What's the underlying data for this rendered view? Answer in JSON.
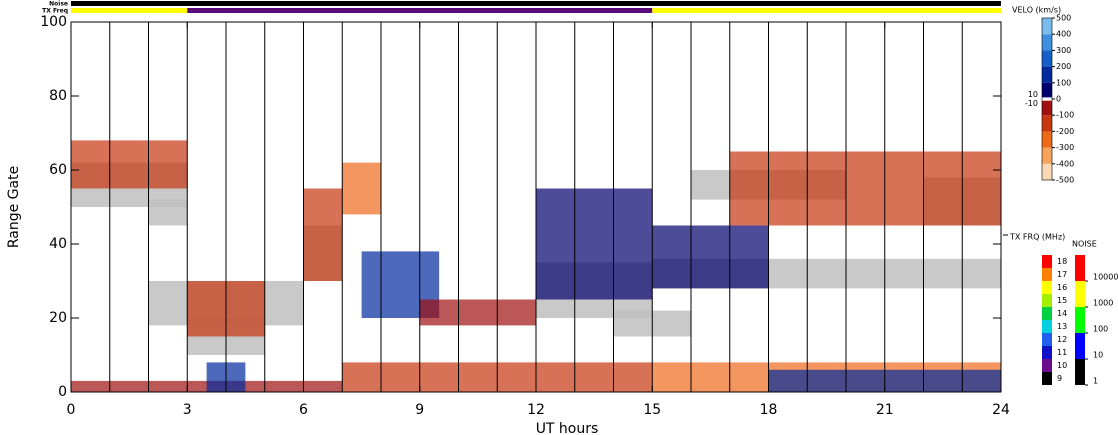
{
  "chart_data": {
    "type": "range_time",
    "xlabel": "UT hours",
    "ylabel": "Range Gate",
    "xlim": [
      0,
      24
    ],
    "xticks": [
      0,
      3,
      6,
      9,
      12,
      15,
      18,
      21,
      24
    ],
    "ylim": [
      0,
      100
    ],
    "yticks": [
      0,
      20,
      40,
      60,
      80,
      100
    ],
    "scan_lines": [
      1,
      2,
      3,
      4,
      5,
      6,
      7,
      8,
      9,
      10,
      11,
      12,
      13,
      14,
      15,
      16,
      17,
      18,
      19,
      20,
      21,
      22,
      23
    ],
    "noise_label": "Noise",
    "noise_color": "#000000",
    "txfreq_label": "TX Freq",
    "txfreq_segments": [
      {
        "start": 0,
        "end": 3,
        "color": "#ffff00"
      },
      {
        "start": 3,
        "end": 15,
        "color": "#5a0a7a"
      },
      {
        "start": 15,
        "end": 24,
        "color": "#ffff00"
      }
    ],
    "ground_color": "#c0c0c0",
    "ground_scatter": [
      [
        0,
        3,
        50,
        62
      ],
      [
        2,
        3,
        45,
        52
      ],
      [
        2,
        6,
        18,
        30
      ],
      [
        3,
        5,
        10,
        20
      ],
      [
        6,
        7,
        30,
        45
      ],
      [
        12,
        15,
        20,
        35
      ],
      [
        15,
        24,
        28,
        36
      ],
      [
        16,
        20,
        52,
        60
      ],
      [
        22,
        24,
        45,
        58
      ],
      [
        14,
        16,
        15,
        22
      ]
    ],
    "echoes": [
      [
        0,
        3,
        55,
        68,
        -150
      ],
      [
        0,
        7,
        0,
        3,
        -100
      ],
      [
        7,
        15,
        0,
        8,
        -200
      ],
      [
        15,
        24,
        0,
        8,
        -250
      ],
      [
        7.5,
        9.5,
        20,
        38,
        100
      ],
      [
        12,
        15,
        25,
        55,
        80
      ],
      [
        3,
        5,
        15,
        30,
        -150
      ],
      [
        3.5,
        4.5,
        0,
        8,
        100
      ],
      [
        6,
        7,
        30,
        55,
        -200
      ],
      [
        7,
        8,
        48,
        62,
        -300
      ],
      [
        15,
        18,
        28,
        45,
        60
      ],
      [
        17,
        24,
        45,
        65,
        -150
      ],
      [
        9,
        12,
        18,
        25,
        -100
      ],
      [
        18,
        24,
        0,
        6,
        100
      ]
    ],
    "velo": {
      "title": "VELO (km/s)",
      "lim": [
        -500,
        500
      ],
      "ticks": [
        500,
        400,
        300,
        200,
        100,
        0,
        -100,
        -200,
        -300,
        -400,
        -500
      ],
      "inner_ticks": [
        10,
        -10
      ],
      "colors": [
        {
          "value": -500,
          "color": "#fcd9b4"
        },
        {
          "value": -400,
          "color": "#f7a35c"
        },
        {
          "value": -300,
          "color": "#ee6a1b"
        },
        {
          "value": -200,
          "color": "#c8360f"
        },
        {
          "value": -100,
          "color": "#a01010"
        },
        {
          "value": -10,
          "color": "#ffffff"
        },
        {
          "value": 10,
          "color": "#00006e"
        },
        {
          "value": 100,
          "color": "#002a9e"
        },
        {
          "value": 200,
          "color": "#1560c8"
        },
        {
          "value": 300,
          "color": "#3f8fe0"
        },
        {
          "value": 400,
          "color": "#7bbcee"
        },
        {
          "value": 500,
          "color": "#c4e2fa"
        }
      ]
    },
    "txfreq": {
      "title": "TX FRQ (MHz)",
      "lim": [
        8.5,
        18.5
      ],
      "ticks": [
        9,
        10,
        11,
        12,
        13,
        14,
        15,
        16,
        17,
        18
      ],
      "colors": [
        "#000000",
        "#6a0d8a",
        "#1010c8",
        "#2060f0",
        "#00d0e0",
        "#00d040",
        "#a0f000",
        "#ffff00",
        "#ff8000",
        "#ff0000"
      ]
    },
    "noise": {
      "title": "NOISE",
      "log": true,
      "lim": [
        1,
        100000
      ],
      "ticks": [
        1,
        10,
        100,
        1000,
        10000
      ],
      "colors": [
        "#000000",
        "#0000ff",
        "#00ff00",
        "#ffff00",
        "#ff0000"
      ]
    }
  }
}
